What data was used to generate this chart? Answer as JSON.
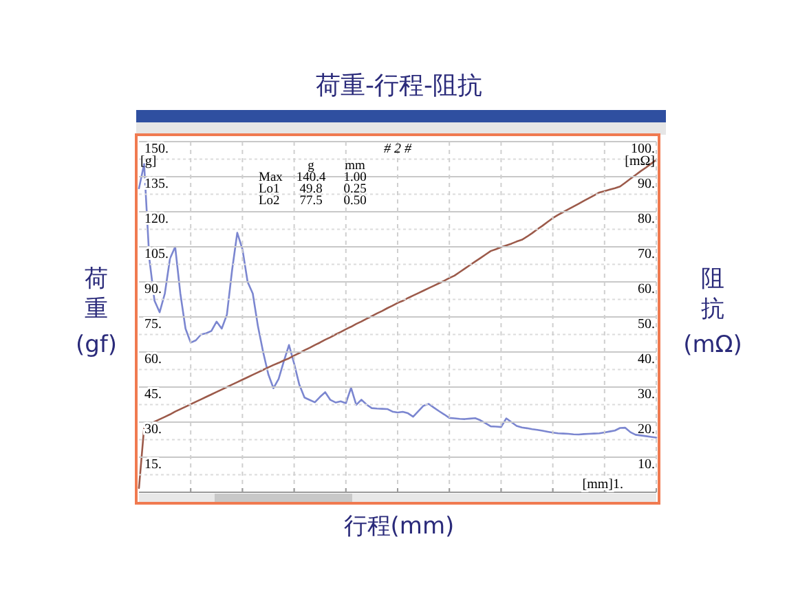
{
  "chart_data": {
    "type": "line",
    "title": "荷重-行程-阻抗",
    "subtitle": "# 2 #",
    "xlabel": "行程(mm)",
    "ylabel": "荷重(gf)",
    "y2label": "阻抗(mΩ)",
    "annotations": [
      "[g]",
      "[mΩ]",
      "[mm]1.",
      "g mm",
      "Max 140.4 1.00",
      "Lo1 49.8 0.25",
      "Lo2 77.5 0.50"
    ],
    "categories": [
      null,
      null,
      null,
      null,
      null,
      null,
      null,
      null,
      null,
      null,
      null,
      null,
      null,
      null,
      null,
      null,
      null,
      null,
      null,
      null,
      null,
      null,
      null,
      null,
      null,
      null,
      null,
      null,
      null,
      null,
      null,
      null,
      null,
      null,
      null,
      null,
      null,
      null,
      null,
      null,
      null,
      null,
      null,
      null,
      null,
      null,
      null,
      null,
      null,
      null,
      null,
      null,
      null,
      null,
      null,
      null,
      null,
      null,
      null,
      null,
      null,
      null,
      null,
      null,
      null,
      null,
      null,
      null,
      null,
      null,
      null,
      null,
      null,
      null,
      null,
      null,
      null,
      null,
      null,
      null,
      null,
      null,
      null,
      null,
      null,
      null,
      null,
      null,
      null,
      null,
      null,
      null,
      null,
      null,
      null,
      null,
      null,
      null,
      null,
      null,
      null
    ],
    "ylim": [
      0,
      150
    ],
    "yticks": [
      {
        "value": 15,
        "label": "15."
      },
      {
        "value": 30,
        "label": "30."
      },
      {
        "value": 45,
        "label": "45."
      },
      {
        "value": 60,
        "label": "60."
      },
      {
        "value": 75,
        "label": "75."
      },
      {
        "value": 90,
        "label": "90."
      },
      {
        "value": 105,
        "label": "105."
      },
      {
        "value": 120,
        "label": "120."
      },
      {
        "value": 135,
        "label": "135."
      },
      {
        "value": 150,
        "label": "150."
      }
    ],
    "y2lim": [
      0,
      100
    ],
    "y2ticks": [
      {
        "value": 10,
        "label": "10."
      },
      {
        "value": 20,
        "label": "20."
      },
      {
        "value": 30,
        "label": "30."
      },
      {
        "value": 40,
        "label": "40."
      },
      {
        "value": 50,
        "label": "50."
      },
      {
        "value": 60,
        "label": "60."
      },
      {
        "value": 70,
        "label": "70."
      },
      {
        "value": 80,
        "label": "80."
      },
      {
        "value": 90,
        "label": "90."
      },
      {
        "value": 100,
        "label": "100."
      }
    ],
    "grid": true,
    "legend": false,
    "series": [
      {
        "color": "#7b86d0",
        "values": [
          130,
          140.4,
          100,
          82,
          77,
          85,
          100,
          105,
          85,
          70,
          64,
          65,
          67.5,
          68,
          69,
          73,
          70,
          76,
          95,
          111,
          104,
          90,
          85,
          71,
          60,
          50.5,
          44.5,
          48.5,
          56,
          63,
          55,
          46,
          40.5,
          39.5,
          38.5,
          40.8,
          42.8,
          39.5,
          38.4,
          38.9,
          38.1,
          44.7,
          37.4,
          39.6,
          37.5,
          36,
          35.8,
          35.7,
          35.6,
          34.5,
          34.1,
          34.4,
          33.8,
          32.3,
          34.7,
          37,
          37.8,
          36.2,
          34.7,
          33.3,
          31.8,
          31.6,
          31.4,
          31.3,
          31.5,
          31.7,
          30.8,
          29.5,
          28.2,
          28.1,
          27.9,
          31.6,
          30,
          28.4,
          27.7,
          27.4,
          27,
          26.7,
          26.3,
          25.9,
          25.5,
          25.2,
          25.1,
          25,
          24.8,
          24.7,
          24.9,
          25,
          25.1,
          25.2,
          25.6,
          26,
          26.4,
          27.5,
          27.6,
          25.7,
          24.6,
          24.3,
          24,
          23.7,
          23.4
        ]
      },
      {
        "color": "#9c5a4a",
        "axis": "y2",
        "values": [
          1.2,
          18.5,
          19.4,
          20.1,
          20.8,
          21.5,
          22.2,
          23,
          23.7,
          24.4,
          25.1,
          25.8,
          26.5,
          27.2,
          27.9,
          28.6,
          29.3,
          30,
          30.7,
          31.4,
          32.1,
          32.8,
          33.5,
          34.2,
          34.9,
          35.6,
          36.3,
          36.9,
          37.6,
          38.2,
          39,
          39.7,
          40.5,
          41.2,
          42,
          42.7,
          43.5,
          44.2,
          45,
          45.7,
          46.5,
          47.2,
          48,
          48.7,
          49.5,
          50.2,
          51,
          51.7,
          52.5,
          53.2,
          54,
          54.6,
          55.4,
          56.1,
          56.8,
          57.5,
          58.2,
          58.9,
          59.6,
          60.3,
          61.1,
          61.8,
          62.8,
          63.8,
          64.8,
          65.8,
          66.8,
          67.8,
          68.8,
          69.3,
          69.9,
          70.4,
          70.9,
          71.5,
          72,
          72.9,
          73.9,
          75,
          76,
          77.1,
          78.2,
          79.1,
          79.9,
          80.7,
          81.5,
          82.3,
          83.1,
          83.9,
          84.7,
          85.5,
          85.9,
          86.3,
          86.7,
          87.2,
          88.3,
          89.4,
          90.5,
          91.6,
          92.6,
          93.7,
          94.8
        ]
      }
    ]
  }
}
